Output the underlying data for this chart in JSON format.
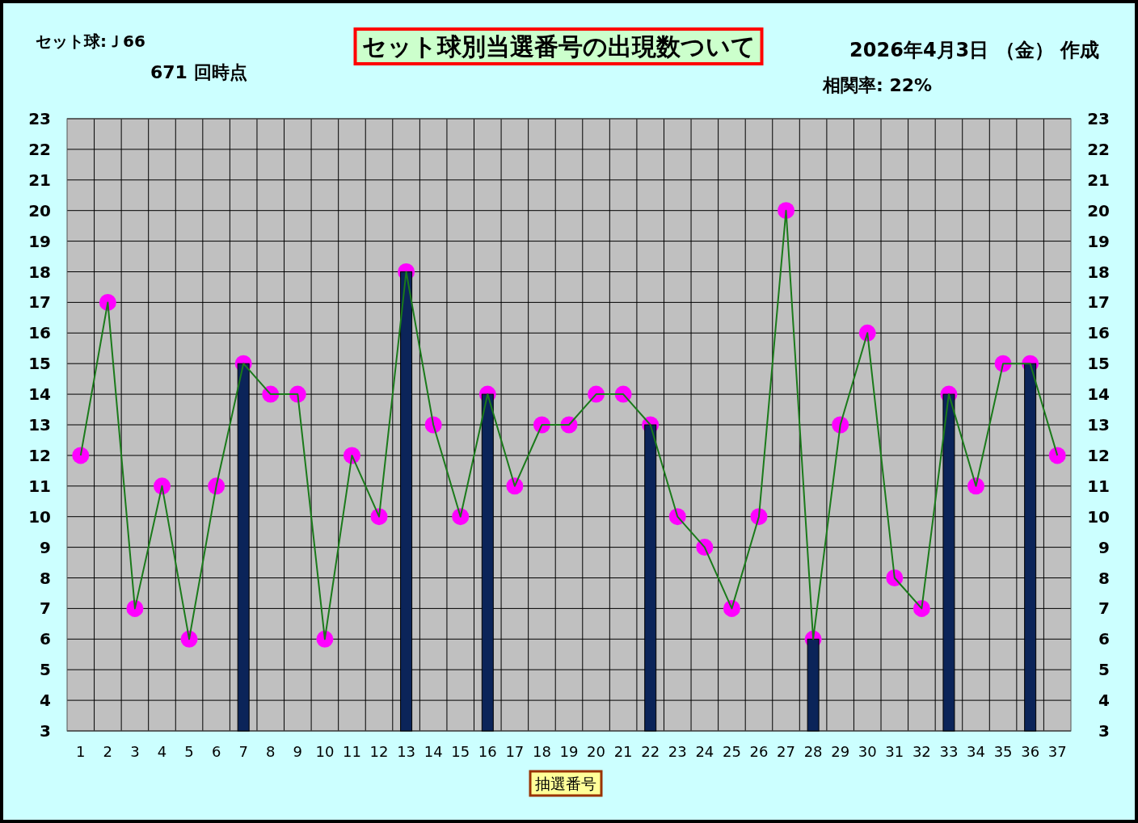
{
  "chart_data": {
    "type": "bar",
    "title": "セット球別当選番号の出現数ついて",
    "xlabel": "抽選番号",
    "annotations": [
      "セット球:Ｊ66",
      "671 回時点",
      "2026年4月3日 （金） 作成",
      "相関率: 22%"
    ],
    "categories": [
      "1",
      "2",
      "3",
      "4",
      "5",
      "6",
      "7",
      "8",
      "9",
      "10",
      "11",
      "12",
      "13",
      "14",
      "15",
      "16",
      "17",
      "18",
      "19",
      "20",
      "21",
      "22",
      "23",
      "24",
      "25",
      "26",
      "27",
      "28",
      "29",
      "30",
      "31",
      "32",
      "33",
      "34",
      "35",
      "36",
      "37"
    ],
    "series": [
      {
        "color": "#0b2459",
        "values": [
          null,
          null,
          null,
          null,
          null,
          null,
          15,
          null,
          null,
          null,
          null,
          null,
          18,
          null,
          null,
          14,
          null,
          null,
          null,
          null,
          null,
          13,
          null,
          null,
          null,
          null,
          null,
          6,
          null,
          null,
          null,
          null,
          14,
          null,
          null,
          15,
          null
        ]
      },
      {
        "type": "line",
        "color": "#1a7a1a",
        "marker": "circle",
        "colors": [
          "#ff00ff",
          "#ff00ff",
          "#ff00ff",
          "#ff00ff",
          "#ff00ff",
          "#ff00ff",
          "#ff00ff",
          "#ff00ff",
          "#ff00ff",
          "#ff00ff",
          "#ff00ff",
          "#ff00ff",
          "#ff00ff",
          "#ff00ff",
          "#ff00ff",
          "#ff00ff",
          "#ff00ff",
          "#ff00ff",
          "#ff00ff",
          "#ff00ff",
          "#ff00ff",
          "#ff00ff",
          "#ff00ff",
          "#ff00ff",
          "#ff00ff",
          "#ff00ff",
          "#ff00ff",
          "#ff00ff",
          "#ff00ff",
          "#ff00ff",
          "#ff00ff",
          "#ff00ff",
          "#ff00ff",
          "#ff00ff",
          "#ff00ff",
          "#ff00ff",
          "#ff00ff"
        ],
        "values": [
          12,
          17,
          7,
          11,
          6,
          11,
          15,
          14,
          14,
          6,
          12,
          10,
          18,
          13,
          10,
          14,
          11,
          13,
          13,
          14,
          14,
          13,
          10,
          9,
          7,
          10,
          20,
          6,
          13,
          16,
          8,
          7,
          14,
          11,
          15,
          15,
          12
        ]
      }
    ],
    "ylim": [
      3,
      23
    ],
    "yticks": [
      3,
      4,
      5,
      6,
      7,
      8,
      9,
      10,
      11,
      12,
      13,
      14,
      15,
      16,
      17,
      18,
      19,
      20,
      21,
      22,
      23
    ],
    "y2lim": [
      3,
      23
    ],
    "y2ticks": [
      3,
      4,
      5,
      6,
      7,
      8,
      9,
      10,
      11,
      12,
      13,
      14,
      15,
      16,
      17,
      18,
      19,
      20,
      21,
      22,
      23
    ],
    "grid": true
  }
}
